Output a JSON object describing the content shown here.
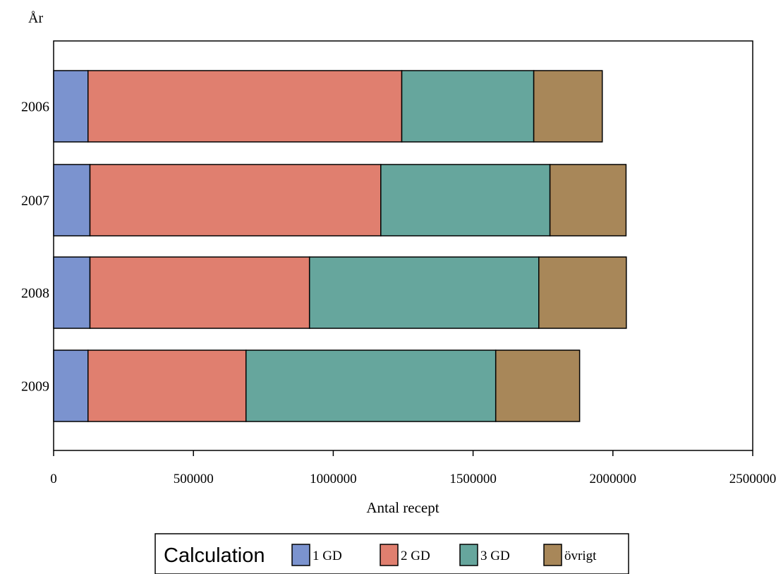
{
  "chart_data": {
    "type": "bar",
    "orientation": "horizontal",
    "stacked": true,
    "ylabel": "År",
    "xlabel": "Antal recept",
    "categories": [
      "2006",
      "2007",
      "2008",
      "2009"
    ],
    "xlim": [
      0,
      2500000
    ],
    "x_ticks": [
      0,
      500000,
      1000000,
      1500000,
      2000000,
      2500000
    ],
    "x_tick_labels": [
      "0",
      "500000",
      "1000000",
      "1500000",
      "2000000",
      "2500000"
    ],
    "grid": false,
    "legend": {
      "title": "Calculation",
      "placement": "bottom"
    },
    "series": [
      {
        "name": "1 GD",
        "color": "#7b93cf",
        "values": [
          123000,
          130000,
          130000,
          123000
        ]
      },
      {
        "name": "2 GD",
        "color": "#e07f6f",
        "values": [
          1122000,
          1040000,
          785000,
          565000
        ]
      },
      {
        "name": "3 GD",
        "color": "#66a69d",
        "values": [
          472000,
          605000,
          820000,
          893000
        ]
      },
      {
        "name": "övrigt",
        "color": "#a88759",
        "values": [
          245000,
          272000,
          313000,
          300000
        ]
      }
    ]
  }
}
